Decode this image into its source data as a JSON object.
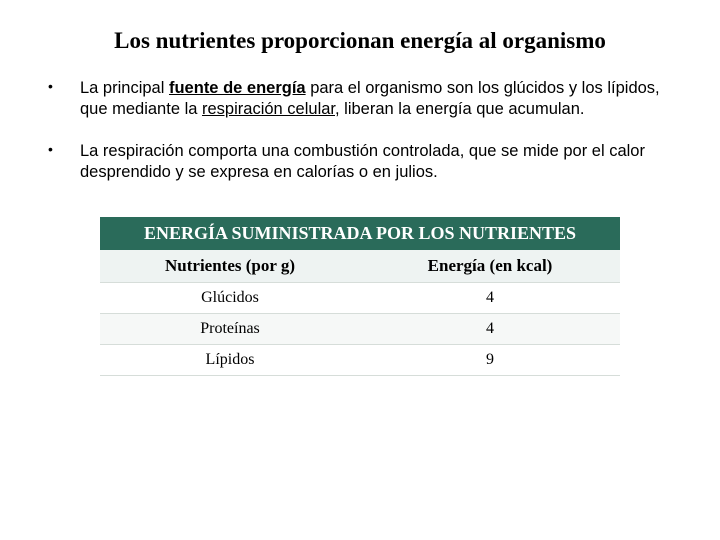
{
  "title": "Los nutrientes proporcionan energía al organismo",
  "bullets": [
    {
      "pre": "La principal ",
      "emph1": "fuente de energía",
      "mid": " para el organismo son los glúcidos y los lípidos, que mediante la ",
      "emph2": "respiración celular",
      "post": ", liberan la energía que acumulan."
    },
    {
      "text": "La respiración comporta una combustión controlada, que se mide por el calor desprendido y se expresa en calorías o en julios."
    }
  ],
  "table": {
    "title": "ENERGÍA SUMINISTRADA POR LOS NUTRIENTES",
    "columns": [
      "Nutrientes (por g)",
      "Energía (en kcal)"
    ],
    "rows": [
      [
        "Glúcidos",
        "4"
      ],
      [
        "Proteínas",
        "4"
      ],
      [
        "Lípidos",
        "9"
      ]
    ],
    "header_bg": "#2a6b5a",
    "header_fg": "#ffffff",
    "sub_bg": "#eef3f2",
    "row_alt_bg": "#f6f8f7",
    "row_bg": "#ffffff",
    "border_color": "#d6ddd9",
    "title_fontsize": 18,
    "sub_fontsize": 17,
    "cell_fontsize": 16
  },
  "colors": {
    "background": "#ffffff",
    "text": "#000000"
  }
}
